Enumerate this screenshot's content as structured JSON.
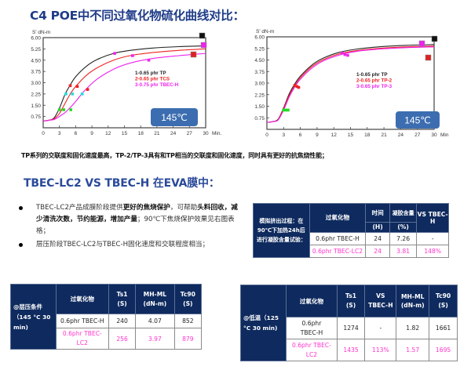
{
  "page": {
    "title": "C4 POE中不同过氧化物硫化曲线对比：",
    "note": "TP系列的交联度和固化速度最高，TP-2/TP-3具有和TP相当的交联度和固化速度，同时具有更好的抗焦烧性能；",
    "section2_title": "TBEC-LC2 VS TBEC-H  在EVA膜中："
  },
  "bullets": [
    {
      "parts": [
        {
          "text": "TBEC-LC2产品成膜阶段提供",
          "bold": false
        },
        {
          "text": "更好的焦烧保护",
          "bold": true
        },
        {
          "text": "，可帮助",
          "bold": false
        },
        {
          "text": "头料回收，减少清洗次数，节约能源，增加产量",
          "bold": true
        },
        {
          "text": "；90℃下焦烧保护效果见右图表格；",
          "bold": false
        }
      ]
    },
    {
      "parts": [
        {
          "text": "层压阶段TBEC-LC2与TBEC-H固化速度和交联程度相当；",
          "bold": false
        }
      ]
    }
  ],
  "chart_data": [
    {
      "type": "line",
      "title": "C4 POE中不同过氧化物硫化曲线对比",
      "xlabel": "Min.",
      "ylabel": "S' dN-m",
      "xlim": [
        0,
        30
      ],
      "ylim": [
        0,
        6.0
      ],
      "x_ticks": [
        "0",
        "3",
        "6",
        "9",
        "12",
        "15",
        "18",
        "21",
        "24",
        "27",
        "30"
      ],
      "y_ticks": [
        "0.75",
        "1.50",
        "2.25",
        "3.00",
        "3.75",
        "4.50",
        "5.25",
        "6.00"
      ],
      "annotation": "145℃",
      "legend": [
        "1-0.65 phr TP",
        "2-0.65 phr TCS",
        "3-0.75 phr TBEC-H"
      ],
      "series": [
        {
          "name": "1-0.65 phr TP",
          "color": "#222222",
          "x": [
            0,
            1,
            2,
            3,
            4,
            5,
            6,
            8,
            10,
            13,
            16,
            20,
            25,
            30
          ],
          "y": [
            0.45,
            0.5,
            0.65,
            1.3,
            2.2,
            2.85,
            3.4,
            4.1,
            4.55,
            4.95,
            5.15,
            5.3,
            5.4,
            5.45
          ]
        },
        {
          "name": "2-0.65 phr TCS",
          "color": "#ee2222",
          "x": [
            0,
            1,
            2,
            3,
            4,
            5,
            6,
            8,
            10,
            13,
            16,
            20,
            25,
            30
          ],
          "y": [
            0.45,
            0.5,
            0.6,
            0.95,
            1.6,
            2.25,
            2.75,
            3.5,
            4.0,
            4.5,
            4.8,
            5.0,
            5.15,
            5.25
          ]
        },
        {
          "name": "3-0.75 phr TBEC-H",
          "color": "#ee22ee",
          "x": [
            0,
            1,
            2,
            3,
            4,
            5,
            6,
            7,
            8,
            10,
            13,
            16,
            20,
            25,
            30
          ],
          "y": [
            0.45,
            0.5,
            0.55,
            0.75,
            1.0,
            1.35,
            1.75,
            2.2,
            2.6,
            3.25,
            3.9,
            4.3,
            4.6,
            4.8,
            4.95
          ]
        }
      ]
    },
    {
      "type": "line",
      "xlabel": "Min",
      "ylabel": "S' dN-m",
      "xlim": [
        0,
        30
      ],
      "ylim": [
        0,
        6.0
      ],
      "x_ticks": [
        "0",
        "3",
        "6",
        "9",
        "12",
        "15",
        "18",
        "21",
        "24",
        "27",
        "30"
      ],
      "y_ticks": [
        "0.75",
        "1.50",
        "2.25",
        "3.00",
        "3.75",
        "4.50",
        "5.25",
        "6.00"
      ],
      "annotation": "145℃",
      "legend": [
        "1-0.65 phr TP",
        "2-0.65 phr TP-2",
        "3-0.65 phr TP-3"
      ],
      "series": [
        {
          "name": "1-0.65 phr TP",
          "color": "#222222",
          "x": [
            0,
            1,
            2,
            3,
            4,
            5,
            6,
            8,
            10,
            13,
            16,
            20,
            25,
            30
          ],
          "y": [
            0.45,
            0.5,
            0.65,
            1.4,
            2.3,
            2.95,
            3.45,
            4.15,
            4.6,
            5.0,
            5.2,
            5.35,
            5.45,
            5.5
          ]
        },
        {
          "name": "2-0.65 phr TP-2",
          "color": "#ee2222",
          "x": [
            0,
            1,
            2,
            3,
            4,
            5,
            6,
            8,
            10,
            13,
            16,
            20,
            25,
            30
          ],
          "y": [
            0.45,
            0.5,
            0.62,
            1.35,
            2.2,
            2.85,
            3.35,
            4.05,
            4.5,
            4.9,
            5.1,
            5.25,
            5.35,
            5.4
          ]
        },
        {
          "name": "3-0.65 phr TP-3",
          "color": "#ee22ee",
          "x": [
            0,
            1,
            2,
            3,
            4,
            5,
            6,
            8,
            10,
            13,
            16,
            20,
            25,
            30
          ],
          "y": [
            0.45,
            0.5,
            0.6,
            1.25,
            2.1,
            2.75,
            3.25,
            3.95,
            4.42,
            4.82,
            5.05,
            5.2,
            5.3,
            5.35
          ]
        }
      ]
    }
  ],
  "table_extrusion": {
    "row_header": "模拟挤出过程：在90℃下加热24h后进行凝胶含量试验：",
    "headers": {
      "peroxide": "过氧化物",
      "time": "时间",
      "time_unit": "(H)",
      "gel": "凝胶含量",
      "gel_unit": "(%)",
      "vs": "VS TBEC-H"
    },
    "rows": [
      {
        "peroxide": "0.6phr TBEC-H",
        "time": "24",
        "gel": "7.26",
        "vs": "-",
        "highlight": false
      },
      {
        "peroxide": "0.6phr TBEC-LC2",
        "time": "24",
        "gel": "3.81",
        "vs": "148%",
        "highlight": true
      }
    ]
  },
  "table_lamination": {
    "row_header": "@层压条件（145 °C 30 min)",
    "headers": {
      "peroxide": "过氧化物",
      "ts1": "Ts1",
      "ts1_unit": "(S)",
      "mhml": "MH-ML",
      "mhml_unit": "(dN-m)",
      "tc90": "Tc90",
      "tc90_unit": "(S)"
    },
    "rows": [
      {
        "peroxide": "0.6phr TBEC-H",
        "ts1": "240",
        "mhml": "4.07",
        "tc90": "852",
        "highlight": false
      },
      {
        "peroxide": "0.6phr TBEC-LC2",
        "ts1": "256",
        "mhml": "3.97",
        "tc90": "879",
        "highlight": true
      }
    ]
  },
  "table_lowtemp": {
    "row_header": "@低温（125 °C 30 min)",
    "headers": {
      "peroxide": "过氧化物",
      "ts1": "Ts1",
      "ts1_unit": "(S)",
      "vs": "VS TBEC-H",
      "mhml": "MH-ML (dN-m)",
      "tc90": "Tc90",
      "tc90_unit": "(S)"
    },
    "rows": [
      {
        "peroxide": "0.6phr TBEC-H",
        "ts1": "1274",
        "vs": "-",
        "mhml": "1.82",
        "tc90": "1661",
        "highlight": false
      },
      {
        "peroxide": "0.6phr TBEC-LC2",
        "ts1": "1435",
        "vs": "113%",
        "mhml": "1.57",
        "tc90": "1695",
        "highlight": true
      }
    ]
  },
  "colors": {
    "title_blue": "#1f3c88",
    "table_header": "#0e2a5e",
    "highlight_pink": "#ff33cc",
    "temp_badge": "#3c6db0"
  }
}
